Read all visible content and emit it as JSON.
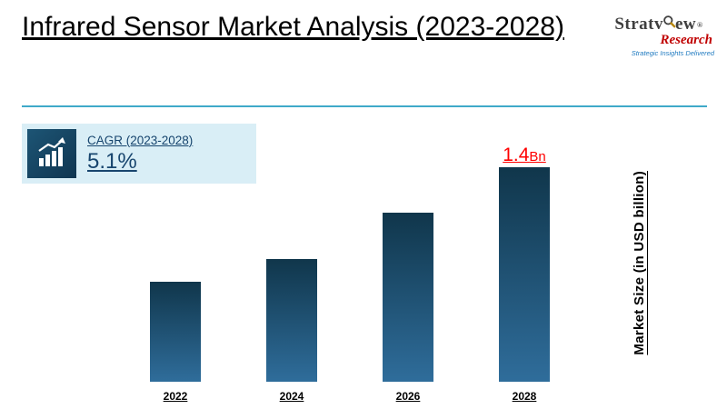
{
  "header": {
    "title": "Infrared Sensor Market Analysis (2023-2028)"
  },
  "logo": {
    "brand_prefix": "Stratv",
    "brand_suffix": "ew",
    "registered": "®",
    "brand_word2": "Research",
    "tagline": "Strategic Insights Delivered"
  },
  "cagr": {
    "label": "CAGR (2023-2028)",
    "value": "5.1%"
  },
  "chart_data": {
    "type": "bar",
    "categories": [
      "2022",
      "2024",
      "2026",
      "2028"
    ],
    "values": [
      0.65,
      0.8,
      1.1,
      1.4
    ],
    "unit": "USD billion",
    "title": "Infrared Sensor Market Analysis (2023-2028)",
    "xlabel": "",
    "ylabel": "Market Size (in USD billion)",
    "ylim": [
      0,
      1.6
    ],
    "grid": false,
    "legend": false,
    "cagr_2023_2028": "5.1%",
    "annotations": [
      {
        "category": "2028",
        "text_big": "1.4",
        "text_small": "Bn",
        "color": "#ff0000"
      }
    ],
    "bar_gradient_top": "#10364b",
    "bar_gradient_bottom": "#2f6d9b"
  },
  "colors": {
    "divider": "#3fa9c9",
    "cagr_box_bg": "#d9eef6",
    "cagr_text": "#17456e",
    "annotation_red": "#ff0000",
    "research_red": "#c00000",
    "tagline_blue": "#1f7ac0"
  }
}
